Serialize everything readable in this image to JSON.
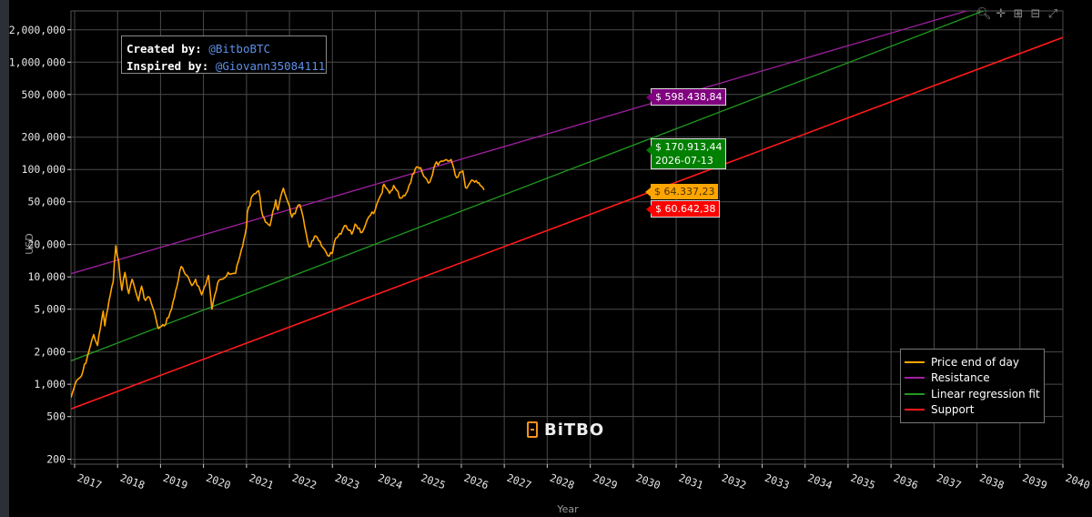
{
  "chart_data": {
    "type": "line",
    "title": "",
    "xlabel": "Year",
    "ylabel": "USD",
    "y_scale": "log",
    "y_ticks": [
      200,
      500,
      1000,
      2000,
      5000,
      10000,
      20000,
      50000,
      100000,
      200000,
      500000,
      1000000,
      2000000
    ],
    "y_tick_labels": [
      "200",
      "500",
      "1,000",
      "2,000",
      "5,000",
      "10,000",
      "20,000",
      "50,000",
      "100,000",
      "200,000",
      "500,000",
      "1,000,000",
      "2,000,000"
    ],
    "x_ticks": [
      "2017",
      "2018",
      "2019",
      "2020",
      "2021",
      "2022",
      "2023",
      "2024",
      "2025",
      "2026",
      "2027",
      "2028",
      "2029",
      "2030",
      "2031",
      "2032",
      "2033",
      "2034",
      "2035",
      "2036",
      "2037",
      "2038",
      "2039",
      "2040"
    ],
    "xlim": [
      "2016-12-01",
      "2040-01-01"
    ],
    "ylim": [
      180,
      3000000
    ],
    "grid": true,
    "legend_position": "bottom-right",
    "series": [
      {
        "name": "Price end of day",
        "color": "#ffa500",
        "dates": [
          "2016-12-01",
          "2017-01-05",
          "2017-03-01",
          "2017-05-01",
          "2017-06-12",
          "2017-07-15",
          "2017-09-01",
          "2017-09-15",
          "2017-10-20",
          "2017-11-25",
          "2017-12-17",
          "2018-01-10",
          "2018-02-06",
          "2018-03-05",
          "2018-04-06",
          "2018-05-05",
          "2018-06-28",
          "2018-07-24",
          "2018-08-15",
          "2018-10-01",
          "2018-11-25",
          "2018-12-15",
          "2019-02-01",
          "2019-04-05",
          "2019-06-26",
          "2019-08-01",
          "2019-09-25",
          "2019-10-26",
          "2019-12-17",
          "2020-02-13",
          "2020-03-13",
          "2020-04-30",
          "2020-06-01",
          "2020-07-28",
          "2020-09-30",
          "2020-11-30",
          "2020-12-31",
          "2021-01-08",
          "2021-02-21",
          "2021-04-14",
          "2021-05-19",
          "2021-06-22",
          "2021-07-20",
          "2021-09-06",
          "2021-09-25",
          "2021-11-10",
          "2021-12-31",
          "2022-01-22",
          "2022-03-30",
          "2022-05-12",
          "2022-06-18",
          "2022-08-14",
          "2022-09-30",
          "2022-11-21",
          "2022-12-31",
          "2023-01-31",
          "2023-03-15",
          "2023-04-14",
          "2023-06-15",
          "2023-07-13",
          "2023-09-11",
          "2023-10-24",
          "2023-12-31",
          "2024-02-28",
          "2024-03-14",
          "2024-05-01",
          "2024-06-05",
          "2024-08-05",
          "2024-09-30",
          "2024-11-12",
          "2024-12-17",
          "2025-01-20",
          "2025-02-28",
          "2025-04-08",
          "2025-05-22",
          "2025-07-14",
          "2025-08-13",
          "2025-10-06",
          "2025-11-21",
          "2026-01-14",
          "2026-02-05",
          "2026-03-15",
          "2026-04-10",
          "2026-05-20",
          "2026-06-20",
          "2026-07-13"
        ],
        "values": [
          750,
          1000,
          1200,
          2000,
          2900,
          2300,
          4800,
          3500,
          6000,
          9000,
          19500,
          14000,
          7500,
          11000,
          7000,
          9500,
          6000,
          8200,
          6300,
          6400,
          4000,
          3300,
          3500,
          5000,
          12500,
          10500,
          8300,
          9500,
          6800,
          10300,
          5000,
          8700,
          9500,
          11000,
          10800,
          19500,
          29000,
          40000,
          57000,
          63500,
          37000,
          32000,
          30000,
          52000,
          42000,
          67000,
          46000,
          36000,
          47000,
          29000,
          19000,
          24000,
          19500,
          15800,
          16500,
          23000,
          25000,
          30000,
          25000,
          31000,
          26000,
          34000,
          42000,
          61000,
          73000,
          60000,
          71000,
          54000,
          63000,
          90000,
          106000,
          104000,
          84000,
          76000,
          111000,
          120000,
          122000,
          124000,
          84000,
          97000,
          68000,
          75000,
          79000,
          75000,
          70000,
          64337.23
        ]
      },
      {
        "name": "Resistance",
        "color": "#a020a0",
        "dates": [
          "2016-12-01",
          "2038-05-01"
        ],
        "values": [
          10700,
          3500000
        ]
      },
      {
        "name": "Linear regression fit",
        "color": "#1f9a1f",
        "dates": [
          "2016-12-01",
          "2038-05-01"
        ],
        "values": [
          1650,
          3200000
        ]
      },
      {
        "name": "Support",
        "color": "#ff1a1a",
        "dates": [
          "2016-12-01",
          "2040-01-01"
        ],
        "values": [
          590,
          1700000
        ]
      }
    ],
    "annotations": [
      {
        "series": "Resistance",
        "label": "$ 598.438,84"
      },
      {
        "series": "Linear regression fit",
        "label": "$ 170.913,44",
        "date_label": "2026-07-13"
      },
      {
        "series": "Price end of day",
        "label": "$ 64.337,23"
      },
      {
        "series": "Support",
        "label": "$ 60.642,38"
      }
    ]
  },
  "credits": {
    "created_label": "Created by:",
    "created_value": "@BitboBTC",
    "inspired_label": "Inspired by:",
    "inspired_value": "@Giovann35084111"
  },
  "brand": "BiTBO",
  "modebar_icons": [
    "zoom-icon",
    "pan-icon",
    "zoom-in-icon",
    "zoom-out-icon",
    "autoscale-icon"
  ]
}
